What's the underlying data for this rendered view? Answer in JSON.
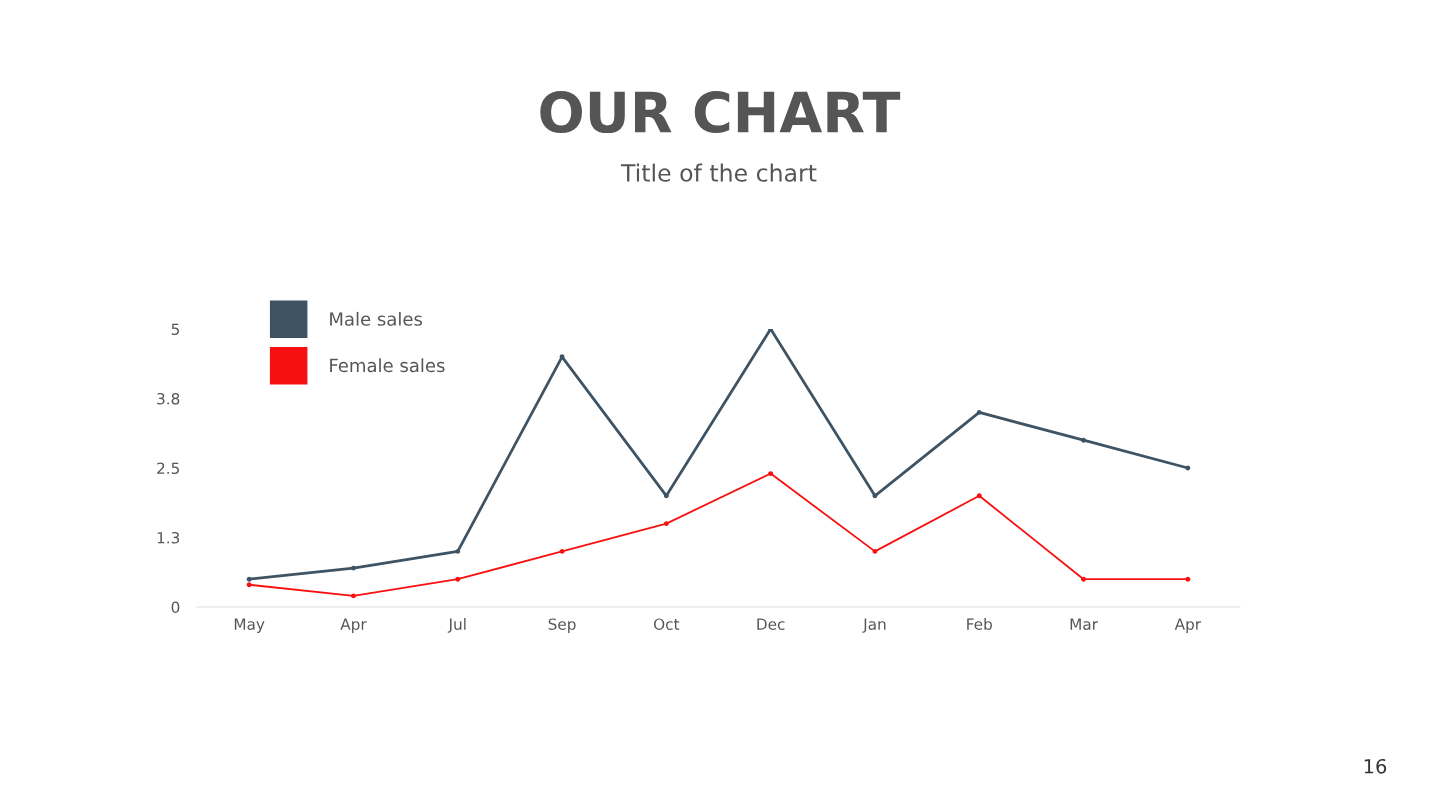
{
  "chart_data": {
    "type": "line",
    "title": "OUR CHART",
    "subtitle": "Title of the chart",
    "categories": [
      "May",
      "Apr",
      "Jul",
      "Sep",
      "Oct",
      "Dec",
      "Jan",
      "Feb",
      "Mar",
      "Apr"
    ],
    "series": [
      {
        "name": "Male sales",
        "color": "#3e5363",
        "values": [
          0.5,
          0.7,
          1.0,
          4.5,
          2.0,
          5.0,
          2.0,
          3.5,
          3.0,
          2.5
        ]
      },
      {
        "name": "Female sales",
        "color": "#f81010",
        "values": [
          0.4,
          0.2,
          0.5,
          1.0,
          1.5,
          2.4,
          1.0,
          2.0,
          0.5,
          0.5
        ]
      }
    ],
    "ylim": [
      0,
      5
    ],
    "yticks": [
      0,
      {
        "value": 1.25,
        "label": "1.3"
      },
      2.5,
      {
        "value": 3.75,
        "label": "3.8"
      },
      5
    ],
    "legend": "top left",
    "marker": "circle",
    "line_style": "solid",
    "grid": false,
    "annotations": [
      "16"
    ]
  }
}
